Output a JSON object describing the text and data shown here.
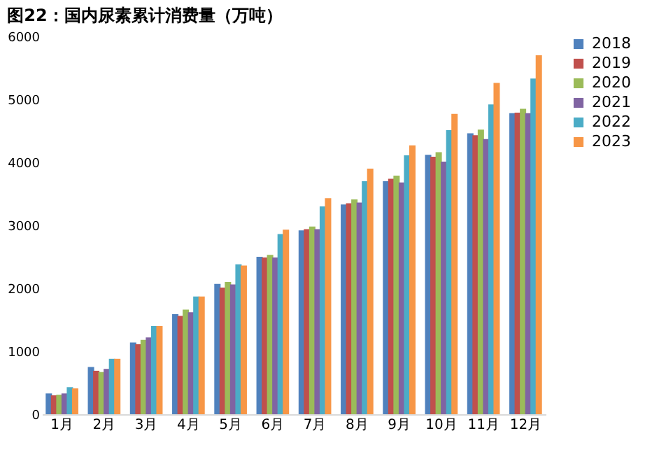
{
  "chart_data": {
    "type": "bar",
    "title": "图22：国内尿素累计消费量（万吨）",
    "categories": [
      "1月",
      "2月",
      "3月",
      "4月",
      "5月",
      "6月",
      "7月",
      "8月",
      "9月",
      "10月",
      "11月",
      "12月"
    ],
    "series": [
      {
        "name": "2018",
        "color": "#4f81bd",
        "values": [
          330,
          750,
          1140,
          1590,
          2070,
          2500,
          2920,
          3330,
          3700,
          4120,
          4460,
          4780
        ]
      },
      {
        "name": "2019",
        "color": "#c0504d",
        "values": [
          300,
          690,
          1110,
          1560,
          2010,
          2490,
          2940,
          3350,
          3740,
          4090,
          4430,
          4790
        ]
      },
      {
        "name": "2020",
        "color": "#9bbb59",
        "values": [
          310,
          670,
          1180,
          1660,
          2100,
          2530,
          2980,
          3410,
          3790,
          4160,
          4520,
          4850
        ]
      },
      {
        "name": "2021",
        "color": "#8064a2",
        "values": [
          330,
          720,
          1220,
          1620,
          2060,
          2490,
          2940,
          3360,
          3680,
          4010,
          4370,
          4780
        ]
      },
      {
        "name": "2022",
        "color": "#4bacc6",
        "values": [
          430,
          880,
          1400,
          1870,
          2380,
          2860,
          3300,
          3700,
          4110,
          4510,
          4920,
          5330
        ]
      },
      {
        "name": "2023",
        "color": "#f79646",
        "values": [
          410,
          880,
          1400,
          1870,
          2360,
          2930,
          3430,
          3900,
          4270,
          4770,
          5260,
          5700
        ]
      }
    ],
    "ylim": [
      0,
      6000
    ],
    "yticks": [
      0,
      1000,
      2000,
      3000,
      4000,
      5000,
      6000
    ],
    "grid": false,
    "legend": "right"
  }
}
